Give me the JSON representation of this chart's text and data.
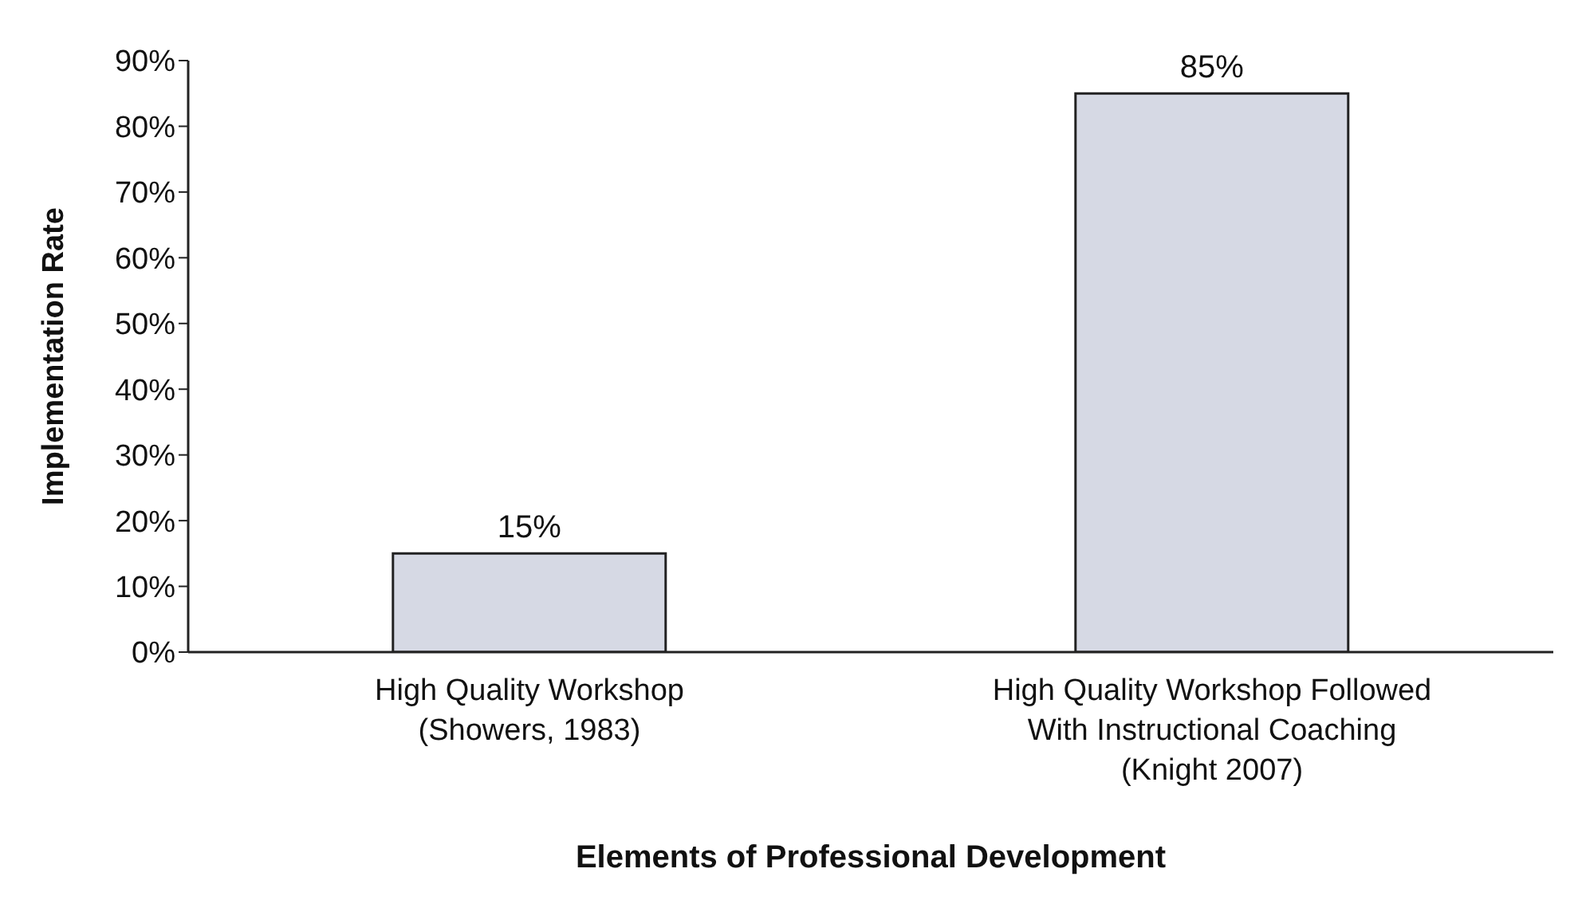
{
  "chart_data": {
    "type": "bar",
    "xlabel": "Elements of Professional Development",
    "ylabel": "Implementation Rate",
    "categories": [
      "High Quality Workshop\n(Showers, 1983)",
      "High Quality Workshop Followed\nWith Instructional Coaching\n(Knight 2007)"
    ],
    "values": [
      15,
      85
    ],
    "value_labels": [
      "15%",
      "85%"
    ],
    "color": "#d6d9e4",
    "ylim": [
      0,
      90
    ],
    "yticks": [
      {
        "value": 0,
        "label": "0%"
      },
      {
        "value": 10,
        "label": "10%"
      },
      {
        "value": 20,
        "label": "20%"
      },
      {
        "value": 30,
        "label": "30%"
      },
      {
        "value": 40,
        "label": "40%"
      },
      {
        "value": 50,
        "label": "50%"
      },
      {
        "value": 60,
        "label": "60%"
      },
      {
        "value": 70,
        "label": "70%"
      },
      {
        "value": 80,
        "label": "80%"
      },
      {
        "value": 90,
        "label": "90%"
      }
    ],
    "grid": false,
    "legend": false
  }
}
